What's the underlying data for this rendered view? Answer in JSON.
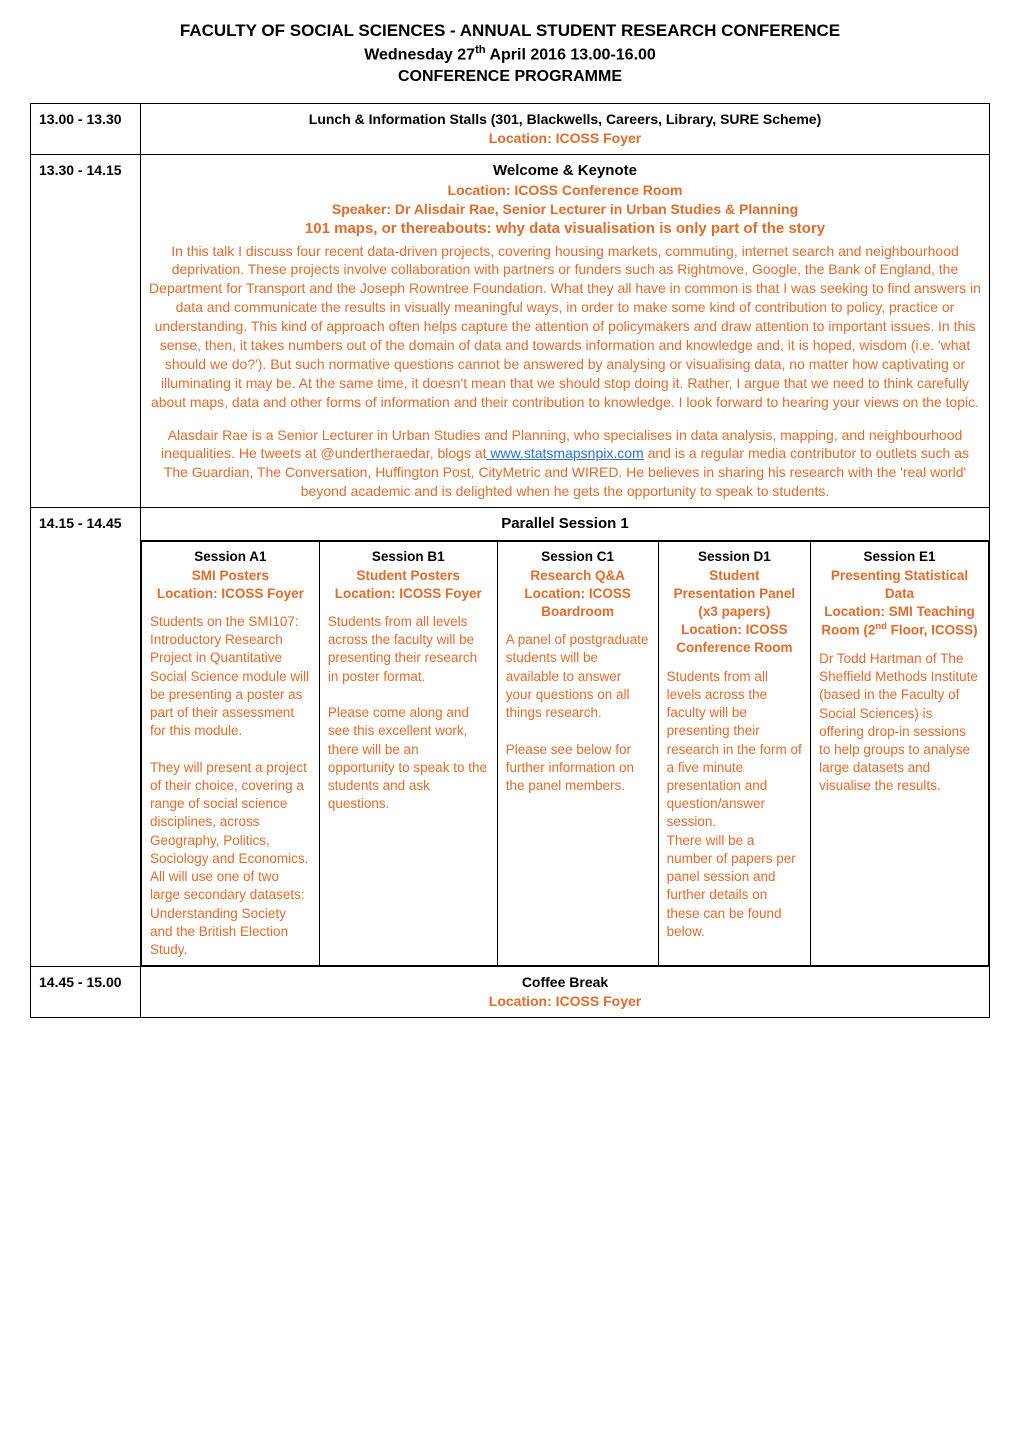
{
  "colors": {
    "accent": "#e06c2b",
    "link": "#2a6fd6",
    "text": "#000000",
    "border": "#000000",
    "background": "#ffffff"
  },
  "header": {
    "line1": "FACULTY OF SOCIAL SCIENCES  - ANNUAL STUDENT RESEARCH CONFERENCE",
    "line2_prefix": "Wednesday 27",
    "line2_suffix": " April 2016 13.00-16.00",
    "line2_sup": "th",
    "line3": "CONFERENCE PROGRAMME"
  },
  "rows": {
    "lunch": {
      "time": "13.00 - 13.30",
      "title": "Lunch & Information Stalls (301, Blackwells, Careers, Library, SURE Scheme)",
      "location": "Location: ICOSS Foyer"
    },
    "keynote": {
      "time": "13.30 - 14.15",
      "title": "Welcome & Keynote",
      "location": "Location: ICOSS Conference Room",
      "speaker": "Speaker: Dr Alisdair Rae, Senior Lecturer in Urban Studies & Planning",
      "talk_title": "101 maps, or thereabouts: why data visualisation is only part of the story",
      "abstract": "In this talk I discuss four recent data-driven projects, covering housing markets, commuting, internet search and neighbourhood deprivation. These projects involve collaboration with partners or funders such as Rightmove, Google, the Bank of England, the Department for Transport and the Joseph Rowntree Foundation. What they all have in common is that I was seeking to find answers in data and communicate the results in visually meaningful ways, in order to make some kind of contribution to policy, practice or understanding. This kind of approach often helps capture the attention of policymakers and draw attention to important issues. In this sense, then, it takes numbers out of the domain of data and towards information and knowledge and, it is hoped, wisdom (i.e. 'what should we do?'). But such normative questions cannot be answered by analysing or visualising data, no matter how captivating or illuminating it may be. At the same time, it doesn't mean that we should stop doing it. Rather, I argue that we need to think carefully about maps, data and other forms of information and their contribution to knowledge. I look forward to hearing your views on the topic.",
      "bio_pre": "Alasdair Rae is a Senior Lecturer in Urban Studies and Planning, who specialises in data analysis, mapping, and neighbourhood inequalities. He tweets at @undertheraedar, blogs at",
      "bio_link": " www.statsmapsnpix.com",
      "bio_post": " and is a regular media contributor to outlets such as The Guardian, The Conversation, Huffington Post, CityMetric and WIRED. He believes in sharing his research with the 'real world' beyond academic and is delighted when he gets the opportunity to speak to students."
    },
    "parallel1": {
      "time": "14.15 - 14.45",
      "title": "Parallel Session 1"
    },
    "coffee": {
      "time": "14.45 - 15.00",
      "title": "Coffee Break",
      "location": "Location: ICOSS Foyer"
    }
  },
  "sessions": {
    "A1": {
      "head_black": "Session A1",
      "head_l1": "SMI Posters",
      "head_l2": "Location: ICOSS Foyer",
      "body_p1": "Students on the SMI107: Introductory Research Project in Quantitative Social Science module will be presenting a poster as part of their assessment for this module.",
      "body_p2": "They will present a project of their choice, covering a range of social science disciplines, across Geography, Politics, Sociology and Economics. All will use one of two large secondary datasets: Understanding Society and the British Election Study."
    },
    "B1": {
      "head_black": "Session B1",
      "head_l1": "Student Posters",
      "head_l2": "Location: ICOSS Foyer",
      "body_p1": "Students from all levels across the faculty will be presenting their research in poster format.",
      "body_p2": "Please come along and see this excellent work, there will be an opportunity to speak to the students and ask questions."
    },
    "C1": {
      "head_black": "Session C1",
      "head_l1": "Research Q&A",
      "head_l2": "Location: ICOSS Boardroom",
      "body_p1": "A panel of postgraduate students will be available to answer your questions on all things research.",
      "body_p2": "Please see below for further information on the panel members."
    },
    "D1": {
      "head_black": "Session D1",
      "head_l1": "Student Presentation Panel",
      "head_l2": "(x3 papers)",
      "head_l3": "Location: ICOSS Conference Room",
      "body_p1": "Students from all levels across the faculty will be presenting their research in the form of a five minute presentation and question/answer session.",
      "body_p2": "There will be a number of papers per panel session and further details on these can be found below."
    },
    "E1": {
      "head_black": "Session E1",
      "head_l1": "Presenting Statistical Data",
      "head_l2": "Location: SMI Teaching Room (2",
      "head_l2_sup": "nd",
      "head_l2_post": " Floor, ICOSS)",
      "body_p1": "Dr Todd Hartman of The Sheffield Methods Institute (based in the Faculty of Social Sciences) is offering drop-in sessions to help groups to analyse large datasets and visualise the results."
    }
  }
}
